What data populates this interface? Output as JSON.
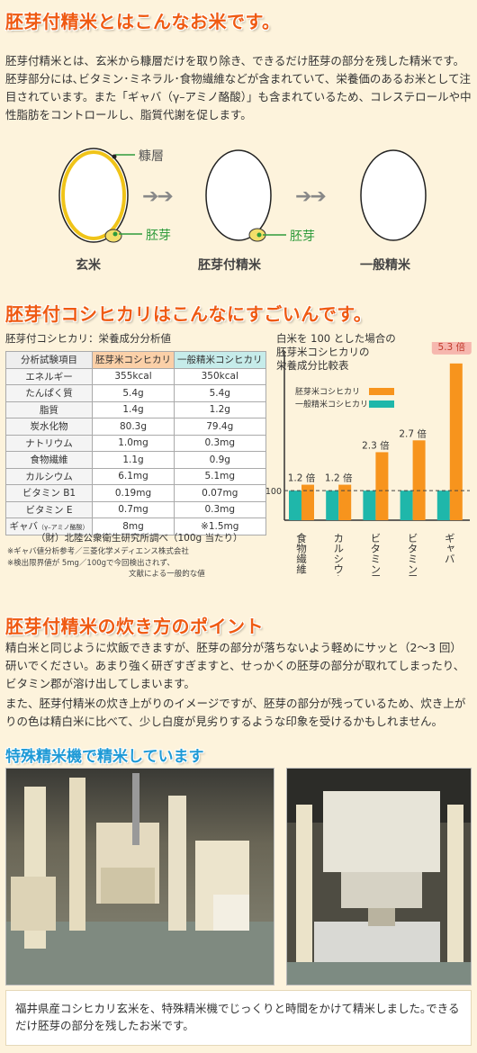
{
  "section1": {
    "heading": "胚芽付精米とはこんなお米です。",
    "body": "胚芽付精米とは、玄米から糠層だけを取り除き、できるだけ胚芽の部分を残した精米です。胚芽部分には､ビタミン･ミネラル･食物繊維などが含まれていて、栄養価のあるお米として注目されています。また「ギャバ（γ–アミノ酪酸）」も含まれているため、コレステロールや中性脂肪をコントロールし、脂質代謝を促します。",
    "diagram": {
      "labels": [
        "玄米",
        "胚芽付精米",
        "一般精米"
      ],
      "part_bran": "糠層",
      "part_germ": "胚芽",
      "arrows": "➔➔"
    }
  },
  "section2": {
    "heading": "胚芽付コシヒカリはこんなにすごいんです。",
    "table": {
      "title": "胚芽付コシヒカリ：栄養成分分析値",
      "headers": [
        "分析試験項目",
        "胚芽米コシヒカリ",
        "一般精米コシヒカリ"
      ],
      "rows": [
        [
          "エネルギー",
          "355kcal",
          "350kcal"
        ],
        [
          "たんぱく質",
          "5.4g",
          "5.4g"
        ],
        [
          "脂質",
          "1.4g",
          "1.2g"
        ],
        [
          "炭水化物",
          "80.3g",
          "79.4g"
        ],
        [
          "ナトリウム",
          "1.0mg",
          "0.3mg"
        ],
        [
          "食物繊維",
          "1.1g",
          "0.9g"
        ],
        [
          "カルシウム",
          "6.1mg",
          "5.1mg"
        ],
        [
          "ビタミン B1",
          "0.19mg",
          "0.07mg"
        ],
        [
          "ビタミン E",
          "0.7mg",
          "0.3mg"
        ]
      ],
      "gaba_row": {
        "name": "ギャバ",
        "sub": "（γ–アミノ酪酸）",
        "v1": "8mg",
        "v2": "※1.5mg"
      },
      "source": "（財）北陸公衆衛生研究所調べ（100g 当たり）",
      "note1": "※ギャバ値分析参考／三菱化学メディエンス株式会社",
      "note2a": "※検出限界値が 5mg／100gで今回検出されず、",
      "note2b": "文献による一般的な値"
    },
    "chart_data": {
      "type": "bar",
      "title_lines": [
        "白米を 100 とした場合の",
        "胚芽米コシヒカリの",
        "栄養成分比較表"
      ],
      "categories": [
        "食物繊維",
        "カルシウム",
        "ビタミンE",
        "ビタミンB1",
        "ギャバ"
      ],
      "series": [
        {
          "name": "胚芽米コシヒカリ",
          "color": "#f7941d",
          "values": [
            1.2,
            1.2,
            2.3,
            2.7,
            5.3
          ]
        },
        {
          "name": "一般精米コシヒカリ",
          "color": "#1fb7aa",
          "values": [
            1,
            1,
            1,
            1,
            1
          ]
        }
      ],
      "value_labels": [
        "1.2 倍",
        "1.2 倍",
        "2.3 倍",
        "2.7 倍",
        "5.3 倍"
      ],
      "baseline_label": "100",
      "ylim": [
        0,
        5.6
      ],
      "legend": "top-left"
    }
  },
  "section3": {
    "heading": "胚芽付精米の炊き方のポイント",
    "body1": "精白米と同じように炊飯できますが、胚芽の部分が落ちないよう軽めにサッと（2～3 回）研いでください。あまり強く研ぎすぎますと、せっかくの胚芽の部分が取れてしまったり、ビタミン郡が溶け出してしまいます。",
    "body2": "また、胚芽付精米の炊き上がりのイメージですが、胚芽の部分が残っているため、炊き上がりの色は精白米に比べて、少し白度が見劣りするような印象を受けるかもしれません。"
  },
  "section4": {
    "heading": "特殊精米機で精米しています",
    "body": "福井県産コシヒカリ玄米を、特殊精米機でじっくりと時間をかけて精米しました｡できるだけ胚芽の部分を残したお米です。"
  },
  "colors": {
    "heading": "#ef5a12",
    "subheading": "#1f9ad6",
    "background": "#fdf3dc"
  }
}
